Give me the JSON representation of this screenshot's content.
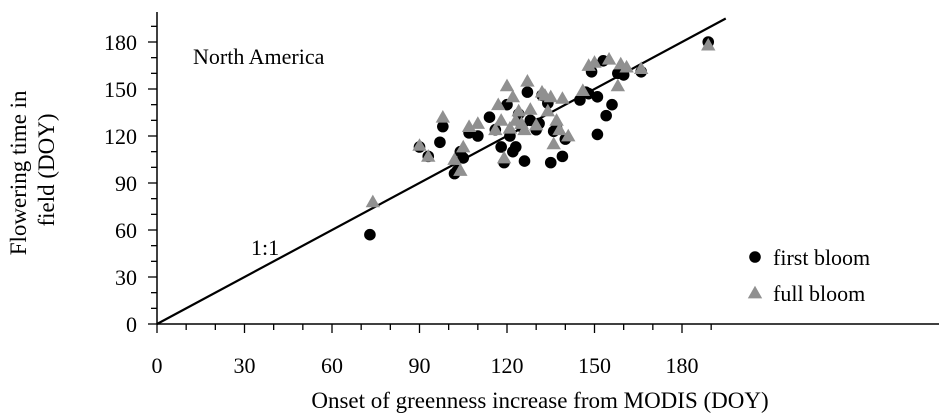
{
  "chart_data": {
    "type": "scatter",
    "title": "",
    "annotation": "North America",
    "xlabel": "Onset of greenness increase from MODIS (DOY)",
    "ylabel_line1": "Flowering time in",
    "ylabel_line2": "field (DOY)",
    "xlim": [
      0,
      195
    ],
    "ylim": [
      0,
      195
    ],
    "xticks": [
      0,
      30,
      60,
      90,
      120,
      150,
      180
    ],
    "yticks": [
      0,
      30,
      60,
      90,
      120,
      150,
      180
    ],
    "xtick_labels": [
      "0",
      "30",
      "60",
      "90",
      "120",
      "150",
      "180"
    ],
    "ytick_labels": [
      "0",
      "30",
      "60",
      "90",
      "120",
      "150",
      "180"
    ],
    "grid": false,
    "legend_position": "lower-right",
    "reference_line": {
      "label": "1:1",
      "slope": 1,
      "intercept": 0
    },
    "series": [
      {
        "name": "first bloom",
        "marker": "circle",
        "color": "#000000",
        "points": [
          [
            73,
            57
          ],
          [
            90,
            113
          ],
          [
            93,
            107
          ],
          [
            97,
            116
          ],
          [
            98,
            126
          ],
          [
            102,
            96
          ],
          [
            103,
            98
          ],
          [
            104,
            110
          ],
          [
            105,
            106
          ],
          [
            107,
            122
          ],
          [
            110,
            120
          ],
          [
            114,
            132
          ],
          [
            116,
            124
          ],
          [
            118,
            113
          ],
          [
            119,
            103
          ],
          [
            120,
            140
          ],
          [
            121,
            120
          ],
          [
            122,
            110
          ],
          [
            123,
            113
          ],
          [
            124,
            134
          ],
          [
            125,
            126
          ],
          [
            126,
            104
          ],
          [
            127,
            148
          ],
          [
            128,
            130
          ],
          [
            130,
            124
          ],
          [
            131,
            128
          ],
          [
            132,
            146
          ],
          [
            134,
            141
          ],
          [
            135,
            103
          ],
          [
            136,
            123
          ],
          [
            137,
            125
          ],
          [
            139,
            107
          ],
          [
            140,
            118
          ],
          [
            145,
            143
          ],
          [
            147,
            148
          ],
          [
            148,
            147
          ],
          [
            149,
            161
          ],
          [
            151,
            145
          ],
          [
            151,
            121
          ],
          [
            153,
            168
          ],
          [
            154,
            133
          ],
          [
            156,
            140
          ],
          [
            158,
            160
          ],
          [
            160,
            159
          ],
          [
            166,
            161
          ],
          [
            189,
            180
          ]
        ]
      },
      {
        "name": "full bloom",
        "marker": "triangle",
        "color": "#909090",
        "points": [
          [
            74,
            78
          ],
          [
            90,
            114
          ],
          [
            93,
            107
          ],
          [
            98,
            132
          ],
          [
            102,
            105
          ],
          [
            104,
            98
          ],
          [
            105,
            113
          ],
          [
            107,
            126
          ],
          [
            110,
            128
          ],
          [
            116,
            124
          ],
          [
            117,
            140
          ],
          [
            118,
            130
          ],
          [
            119,
            106
          ],
          [
            120,
            152
          ],
          [
            121,
            125
          ],
          [
            122,
            145
          ],
          [
            123,
            130
          ],
          [
            124,
            136
          ],
          [
            125,
            128
          ],
          [
            126,
            124
          ],
          [
            127,
            155
          ],
          [
            128,
            137
          ],
          [
            130,
            127
          ],
          [
            132,
            148
          ],
          [
            133,
            146
          ],
          [
            134,
            136
          ],
          [
            135,
            145
          ],
          [
            136,
            115
          ],
          [
            137,
            130
          ],
          [
            138,
            124
          ],
          [
            139,
            144
          ],
          [
            141,
            120
          ],
          [
            146,
            149
          ],
          [
            148,
            165
          ],
          [
            150,
            167
          ],
          [
            155,
            169
          ],
          [
            158,
            152
          ],
          [
            159,
            166
          ],
          [
            161,
            164
          ],
          [
            166,
            163
          ],
          [
            189,
            178
          ]
        ]
      }
    ]
  }
}
